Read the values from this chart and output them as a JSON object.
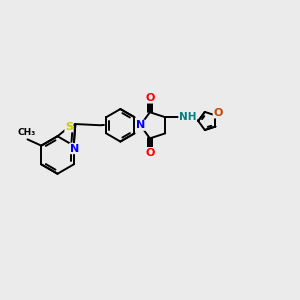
{
  "bg_color": "#ebebeb",
  "bond_color": "#000000",
  "N_color": "#0000ff",
  "O_color": "#ff0000",
  "S_color": "#cccc00",
  "O_furan_color": "#cc4400",
  "NH_color": "#008080",
  "figsize": [
    3.0,
    3.0
  ],
  "dpi": 100,
  "xlim": [
    0,
    12
  ],
  "ylim": [
    2,
    9
  ]
}
